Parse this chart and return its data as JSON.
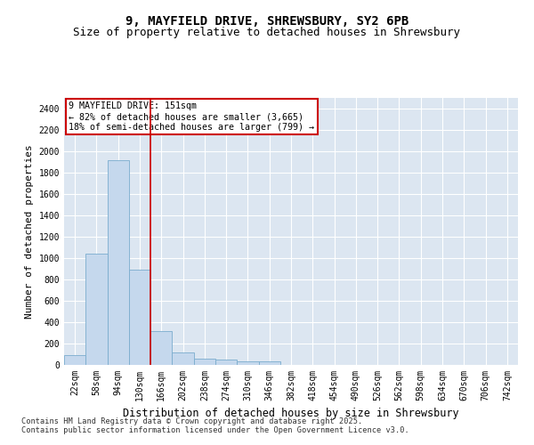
{
  "title1": "9, MAYFIELD DRIVE, SHREWSBURY, SY2 6PB",
  "title2": "Size of property relative to detached houses in Shrewsbury",
  "xlabel": "Distribution of detached houses by size in Shrewsbury",
  "ylabel": "Number of detached properties",
  "categories": [
    "22sqm",
    "58sqm",
    "94sqm",
    "130sqm",
    "166sqm",
    "202sqm",
    "238sqm",
    "274sqm",
    "310sqm",
    "346sqm",
    "382sqm",
    "418sqm",
    "454sqm",
    "490sqm",
    "526sqm",
    "562sqm",
    "598sqm",
    "634sqm",
    "670sqm",
    "706sqm",
    "742sqm"
  ],
  "values": [
    90,
    1040,
    1920,
    890,
    320,
    120,
    60,
    50,
    30,
    30,
    0,
    0,
    0,
    0,
    0,
    0,
    0,
    0,
    0,
    0,
    0
  ],
  "bar_color": "#c5d8ed",
  "bar_edge_color": "#7aacce",
  "vline_color": "#cc0000",
  "vline_pos": 3.5,
  "annotation_text1": "9 MAYFIELD DRIVE: 151sqm",
  "annotation_text2": "← 82% of detached houses are smaller (3,665)",
  "annotation_text3": "18% of semi-detached houses are larger (799) →",
  "annotation_box_color": "#cc0000",
  "ylim": [
    0,
    2500
  ],
  "yticks": [
    0,
    200,
    400,
    600,
    800,
    1000,
    1200,
    1400,
    1600,
    1800,
    2000,
    2200,
    2400
  ],
  "bg_color": "#dce6f1",
  "grid_color": "#ffffff",
  "title1_fontsize": 10,
  "title2_fontsize": 9,
  "tick_fontsize": 7,
  "ylabel_fontsize": 8,
  "xlabel_fontsize": 8.5,
  "footer1": "Contains HM Land Registry data © Crown copyright and database right 2025.",
  "footer2": "Contains public sector information licensed under the Open Government Licence v3.0."
}
